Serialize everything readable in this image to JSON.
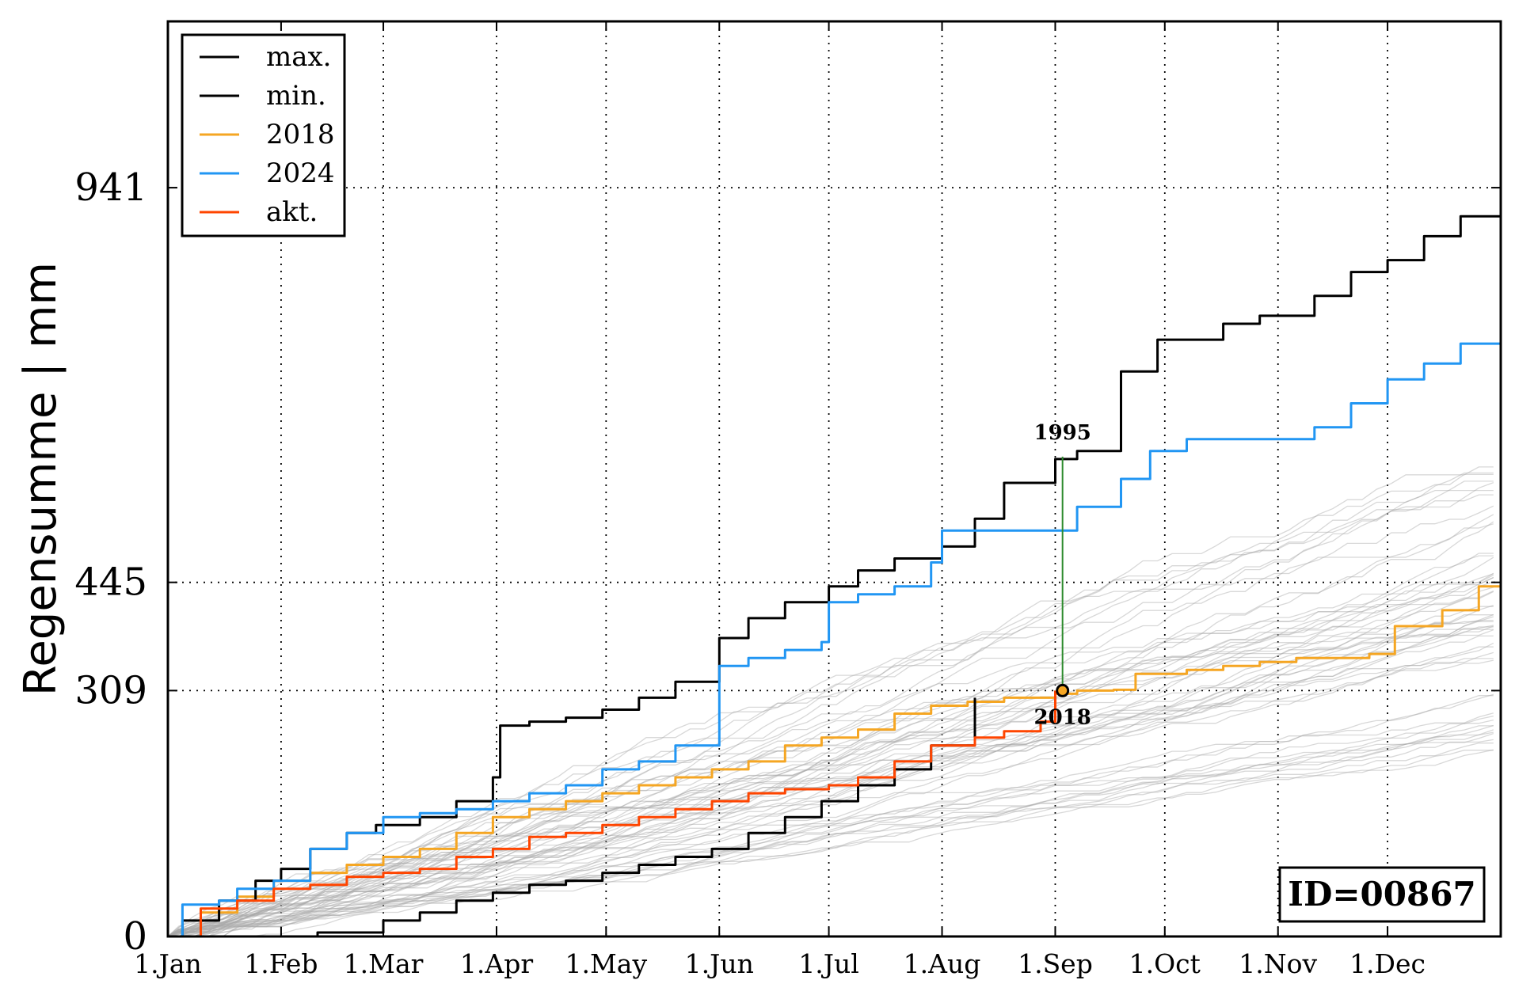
{
  "chart_data": {
    "type": "line",
    "ylabel": "Regensumme | mm",
    "xlabel": "",
    "ylim": [
      0,
      1150
    ],
    "xlim": [
      1,
      366
    ],
    "grid": true,
    "legend_position": "top-left",
    "x_ticks": [
      {
        "label": "1.Jan",
        "day": 1
      },
      {
        "label": "1.Feb",
        "day": 32
      },
      {
        "label": "1.Mar",
        "day": 60
      },
      {
        "label": "1.Apr",
        "day": 91
      },
      {
        "label": "1.May",
        "day": 121
      },
      {
        "label": "1.Jun",
        "day": 152
      },
      {
        "label": "1.Jul",
        "day": 182
      },
      {
        "label": "1.Aug",
        "day": 213
      },
      {
        "label": "1.Sep",
        "day": 244
      },
      {
        "label": "1.Oct",
        "day": 274
      },
      {
        "label": "1.Nov",
        "day": 305
      },
      {
        "label": "1.Dec",
        "day": 335
      }
    ],
    "y_ticks": [
      {
        "label": "0",
        "value": 0
      },
      {
        "label": "309",
        "value": 309
      },
      {
        "label": "445",
        "value": 445
      },
      {
        "label": "941",
        "value": 941
      }
    ],
    "series": [
      {
        "name": "max.",
        "color": "#000000",
        "points": [
          [
            1,
            0
          ],
          [
            5,
            20
          ],
          [
            15,
            45
          ],
          [
            25,
            70
          ],
          [
            32,
            85
          ],
          [
            40,
            110
          ],
          [
            50,
            130
          ],
          [
            58,
            140
          ],
          [
            70,
            150
          ],
          [
            80,
            170
          ],
          [
            90,
            200
          ],
          [
            92,
            265
          ],
          [
            100,
            270
          ],
          [
            110,
            275
          ],
          [
            120,
            285
          ],
          [
            130,
            300
          ],
          [
            140,
            320
          ],
          [
            152,
            375
          ],
          [
            160,
            400
          ],
          [
            170,
            420
          ],
          [
            182,
            440
          ],
          [
            190,
            460
          ],
          [
            200,
            475
          ],
          [
            213,
            490
          ],
          [
            222,
            525
          ],
          [
            230,
            570
          ],
          [
            244,
            600
          ],
          [
            250,
            610
          ],
          [
            262,
            710
          ],
          [
            272,
            750
          ],
          [
            290,
            770
          ],
          [
            300,
            780
          ],
          [
            315,
            805
          ],
          [
            325,
            835
          ],
          [
            335,
            850
          ],
          [
            345,
            880
          ],
          [
            355,
            905
          ],
          [
            366,
            941
          ]
        ]
      },
      {
        "name": "min.",
        "color": "#000000",
        "points": [
          [
            1,
            0
          ],
          [
            20,
            0
          ],
          [
            40,
            0
          ],
          [
            42,
            5
          ],
          [
            60,
            20
          ],
          [
            70,
            30
          ],
          [
            80,
            45
          ],
          [
            90,
            55
          ],
          [
            100,
            65
          ],
          [
            110,
            70
          ],
          [
            120,
            80
          ],
          [
            130,
            90
          ],
          [
            140,
            100
          ],
          [
            150,
            110
          ],
          [
            160,
            130
          ],
          [
            170,
            150
          ],
          [
            180,
            170
          ],
          [
            190,
            190
          ],
          [
            200,
            210
          ],
          [
            210,
            240
          ],
          [
            222,
            300
          ]
        ]
      },
      {
        "name": "2018",
        "color": "#f5a623",
        "points": [
          [
            1,
            0
          ],
          [
            10,
            30
          ],
          [
            20,
            50
          ],
          [
            30,
            70
          ],
          [
            40,
            80
          ],
          [
            50,
            90
          ],
          [
            60,
            100
          ],
          [
            70,
            110
          ],
          [
            80,
            130
          ],
          [
            90,
            150
          ],
          [
            100,
            160
          ],
          [
            110,
            170
          ],
          [
            120,
            180
          ],
          [
            130,
            190
          ],
          [
            140,
            200
          ],
          [
            150,
            210
          ],
          [
            160,
            220
          ],
          [
            170,
            240
          ],
          [
            180,
            250
          ],
          [
            190,
            260
          ],
          [
            200,
            280
          ],
          [
            210,
            290
          ],
          [
            220,
            295
          ],
          [
            230,
            300
          ],
          [
            244,
            305
          ],
          [
            250,
            309
          ],
          [
            260,
            310
          ],
          [
            266,
            330
          ],
          [
            280,
            335
          ],
          [
            290,
            340
          ],
          [
            300,
            345
          ],
          [
            310,
            350
          ],
          [
            330,
            355
          ],
          [
            337,
            390
          ],
          [
            350,
            410
          ],
          [
            360,
            440
          ],
          [
            366,
            445
          ]
        ]
      },
      {
        "name": "2024",
        "color": "#2196f3",
        "points": [
          [
            1,
            0
          ],
          [
            5,
            40
          ],
          [
            15,
            45
          ],
          [
            20,
            60
          ],
          [
            30,
            70
          ],
          [
            40,
            110
          ],
          [
            50,
            130
          ],
          [
            60,
            150
          ],
          [
            70,
            155
          ],
          [
            80,
            160
          ],
          [
            90,
            170
          ],
          [
            100,
            180
          ],
          [
            110,
            190
          ],
          [
            120,
            210
          ],
          [
            130,
            220
          ],
          [
            140,
            240
          ],
          [
            152,
            340
          ],
          [
            160,
            350
          ],
          [
            170,
            360
          ],
          [
            180,
            370
          ],
          [
            182,
            420
          ],
          [
            190,
            430
          ],
          [
            200,
            440
          ],
          [
            210,
            470
          ],
          [
            213,
            510
          ],
          [
            222,
            510
          ],
          [
            235,
            510
          ],
          [
            250,
            540
          ],
          [
            262,
            575
          ],
          [
            270,
            610
          ],
          [
            280,
            625
          ],
          [
            290,
            625
          ],
          [
            300,
            625
          ],
          [
            315,
            640
          ],
          [
            325,
            670
          ],
          [
            335,
            700
          ],
          [
            345,
            720
          ],
          [
            355,
            745
          ],
          [
            366,
            745
          ]
        ]
      },
      {
        "name": "akt.",
        "color": "#ff4500",
        "points": [
          [
            1,
            0
          ],
          [
            10,
            35
          ],
          [
            20,
            45
          ],
          [
            30,
            60
          ],
          [
            40,
            65
          ],
          [
            50,
            75
          ],
          [
            60,
            80
          ],
          [
            70,
            85
          ],
          [
            80,
            100
          ],
          [
            90,
            110
          ],
          [
            100,
            125
          ],
          [
            110,
            130
          ],
          [
            120,
            140
          ],
          [
            130,
            150
          ],
          [
            140,
            160
          ],
          [
            150,
            170
          ],
          [
            160,
            180
          ],
          [
            170,
            185
          ],
          [
            182,
            190
          ],
          [
            190,
            200
          ],
          [
            200,
            220
          ],
          [
            210,
            240
          ],
          [
            222,
            250
          ],
          [
            230,
            258
          ],
          [
            240,
            270
          ],
          [
            244,
            309
          ]
        ]
      }
    ],
    "highlight": {
      "day": 246,
      "upper_value": 603,
      "upper_label": "1995",
      "lower_value": 309,
      "lower_label": "2018",
      "line_color": "#2e8b2e"
    },
    "id_box": "ID=00867"
  }
}
